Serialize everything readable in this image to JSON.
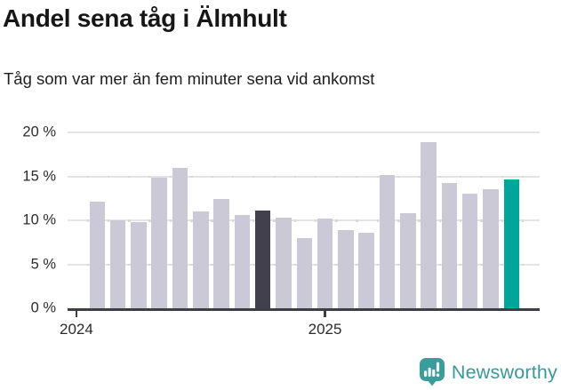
{
  "title": "Andel sena tåg i Älmhult",
  "subtitle": "Tåg som var mer än fem minuter sena vid ankomst",
  "chart_data": {
    "type": "bar",
    "unit": "%",
    "period": "monthly",
    "values": [
      12.1,
      10.0,
      9.8,
      14.8,
      16.0,
      11.0,
      12.4,
      10.6,
      11.1,
      10.3,
      8.0,
      10.2,
      8.9,
      8.6,
      15.2,
      10.8,
      18.9,
      14.2,
      13.0,
      13.5,
      14.6
    ],
    "ylim": [
      0,
      20
    ],
    "y_ticks": [
      {
        "value": 0,
        "label": "0 %"
      },
      {
        "value": 5,
        "label": "5 %"
      },
      {
        "value": 10,
        "label": "10 %"
      },
      {
        "value": 15,
        "label": "15 %"
      },
      {
        "value": 20,
        "label": "20 %"
      }
    ],
    "x_ticks": [
      {
        "label": "2024",
        "align_band": -1
      },
      {
        "label": "2025",
        "align_band": 11
      }
    ],
    "grid": "horizontal",
    "legend": "none",
    "highlights": {
      "dark_index": 8,
      "teal_index": 20
    },
    "colors": {
      "bar_default": "#cbc9d6",
      "bar_dark": "#42404d",
      "bar_teal": "#00a69a",
      "gridline": "#e4e4e4",
      "grid_dot": "#d7d7dc",
      "axis": "#3e3e46",
      "tick_label": "#2b2b2b"
    }
  },
  "footer": {
    "logo_text": "Newsworthy",
    "logo_color": "#38999b",
    "logo_icon": "newsworthy-speech-bubble-barchart-icon"
  }
}
